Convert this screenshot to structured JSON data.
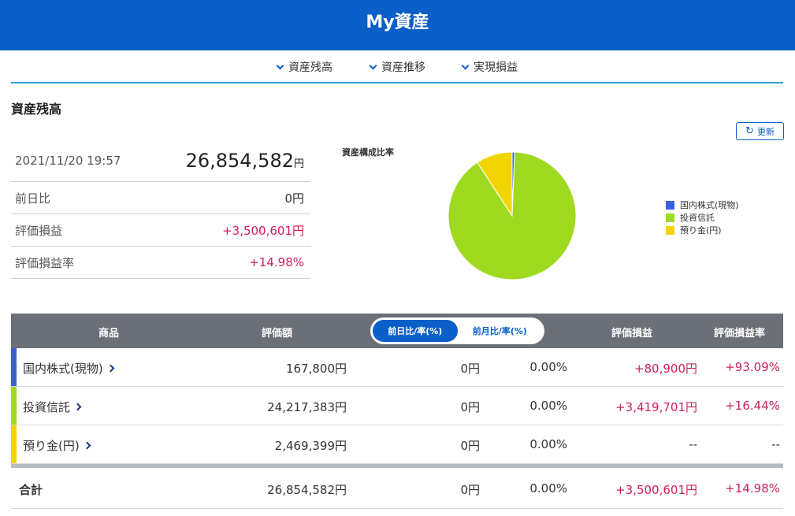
{
  "header": {
    "title": "My資産"
  },
  "subnav": {
    "items": [
      "資産残高",
      "資産推移",
      "実現損益"
    ]
  },
  "section": {
    "title": "資産残高"
  },
  "summary": {
    "datetime": "2021/11/20 19:57",
    "total_value": "26,854,582",
    "total_unit": "円",
    "rows": [
      {
        "label": "前日比",
        "value": "0円"
      },
      {
        "label": "評価損益",
        "value": "+3,500,601円"
      },
      {
        "label": "評価損益率",
        "value": "+14.98%"
      }
    ]
  },
  "refresh": {
    "label": "更新",
    "icon": "refresh-icon"
  },
  "chart_data": {
    "type": "pie",
    "title": "資産構成比率",
    "labels": [
      "国内株式(現物)",
      "投資信託",
      "預り金(円)"
    ],
    "values": [
      167800,
      24217383,
      2469399
    ],
    "colors": [
      "#3a5fdc",
      "#9fd920",
      "#f2d500"
    ],
    "legend": "right"
  },
  "table": {
    "headers": {
      "product": "商品",
      "valuation": "評価額",
      "unrealized": "評価損益",
      "unrealized_rate": "評価損益率"
    },
    "toggle": {
      "options": [
        "前日比/率(%)",
        "前月比/率(%)"
      ],
      "selected": "前日比/率(%)"
    },
    "rows": [
      {
        "name": "国内株式(現物)",
        "valuation": "167,800円",
        "change": "0円",
        "change_rate": "0.00%",
        "unrealized": "+80,900円",
        "unrealized_rate": "+93.09%",
        "color": "#3a5fdc"
      },
      {
        "name": "投資信託",
        "valuation": "24,217,383円",
        "change": "0円",
        "change_rate": "0.00%",
        "unrealized": "+3,419,701円",
        "unrealized_rate": "+16.44%",
        "color": "#9fd920"
      },
      {
        "name": "預り金(円)",
        "valuation": "2,469,399円",
        "change": "0円",
        "change_rate": "0.00%",
        "unrealized": "--",
        "unrealized_rate": "--",
        "color": "#f2d500"
      }
    ],
    "total": {
      "label": "合計",
      "valuation": "26,854,582円",
      "change": "0円",
      "change_rate": "0.00%",
      "unrealized": "+3,500,601円",
      "unrealized_rate": "+14.98%"
    }
  }
}
